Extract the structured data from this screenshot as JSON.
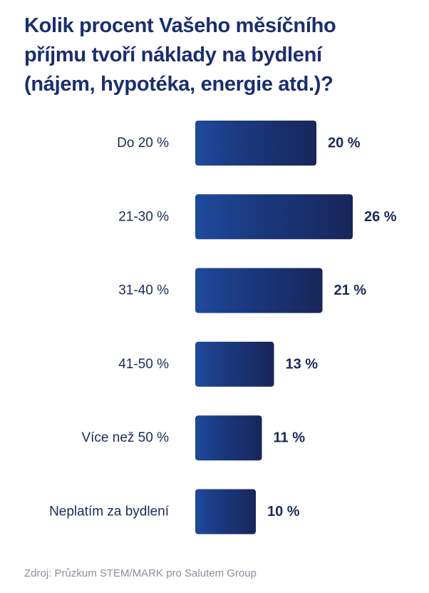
{
  "title_lines": [
    "Kolik procent Vašeho měsíčního",
    "příjmu tvoří náklady na bydlení",
    "(nájem, hypotéka, energie atd.)?"
  ],
  "source": "Zdroj: Průzkum STEM/MARK pro Salutem Group",
  "colors": {
    "bar_dark": "#18265a",
    "bar_light": "#1f4a9c",
    "title": "#1a2e6e",
    "text": "#1c2a55"
  },
  "chart_data": {
    "type": "bar",
    "orientation": "horizontal",
    "title": "Kolik procent Vašeho měsíčního příjmu tvoří náklady na bydlení (nájem, hypotéka, energie atd.)?",
    "categories": [
      "Do 20 %",
      "21-30 %",
      "31-40 %",
      "41-50 %",
      "Více než 50 %",
      "Neplatím za bydlení"
    ],
    "values": [
      20,
      26,
      21,
      13,
      11,
      10
    ],
    "value_labels": [
      "20 %",
      "26 %",
      "21 %",
      "13 %",
      "11 %",
      "10 %"
    ],
    "unit": "%",
    "xlim": [
      0,
      26
    ],
    "grid": false,
    "legend": "none"
  }
}
